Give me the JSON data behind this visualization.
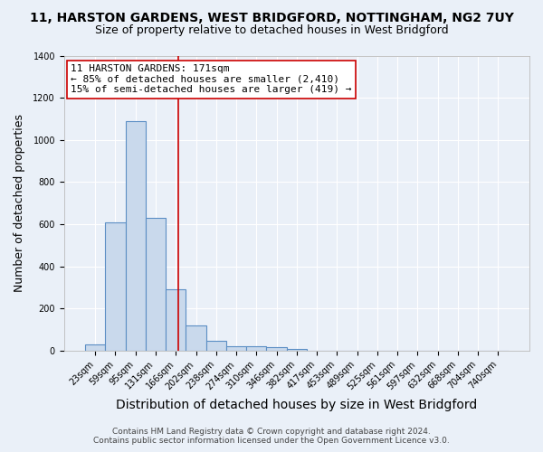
{
  "title": "11, HARSTON GARDENS, WEST BRIDGFORD, NOTTINGHAM, NG2 7UY",
  "subtitle": "Size of property relative to detached houses in West Bridgford",
  "xlabel": "Distribution of detached houses by size in West Bridgford",
  "ylabel": "Number of detached properties",
  "footer_line1": "Contains HM Land Registry data © Crown copyright and database right 2024.",
  "footer_line2": "Contains public sector information licensed under the Open Government Licence v3.0.",
  "bar_labels": [
    "23sqm",
    "59sqm",
    "95sqm",
    "131sqm",
    "166sqm",
    "202sqm",
    "238sqm",
    "274sqm",
    "310sqm",
    "346sqm",
    "382sqm",
    "417sqm",
    "453sqm",
    "489sqm",
    "525sqm",
    "561sqm",
    "597sqm",
    "632sqm",
    "668sqm",
    "704sqm",
    "740sqm"
  ],
  "bar_values": [
    30,
    610,
    1090,
    630,
    290,
    120,
    48,
    22,
    20,
    15,
    10,
    0,
    0,
    0,
    0,
    0,
    0,
    0,
    0,
    0,
    0
  ],
  "bar_color": "#c9d9ec",
  "bar_edge_color": "#5b8ec4",
  "bar_edge_width": 0.8,
  "ylim": [
    0,
    1400
  ],
  "yticks": [
    0,
    200,
    400,
    600,
    800,
    1000,
    1200,
    1400
  ],
  "vline_x": 4.14,
  "vline_color": "#cc0000",
  "annotation_text": "11 HARSTON GARDENS: 171sqm\n← 85% of detached houses are smaller (2,410)\n15% of semi-detached houses are larger (419) →",
  "annotation_box_color": "white",
  "annotation_box_edge": "#cc0000",
  "bg_color": "#eaf0f8",
  "plot_bg_color": "#eaf0f8",
  "grid_color": "white",
  "title_fontsize": 10,
  "subtitle_fontsize": 9,
  "xlabel_fontsize": 10,
  "ylabel_fontsize": 9,
  "tick_fontsize": 7,
  "annotation_fontsize": 8,
  "footer_fontsize": 6.5
}
